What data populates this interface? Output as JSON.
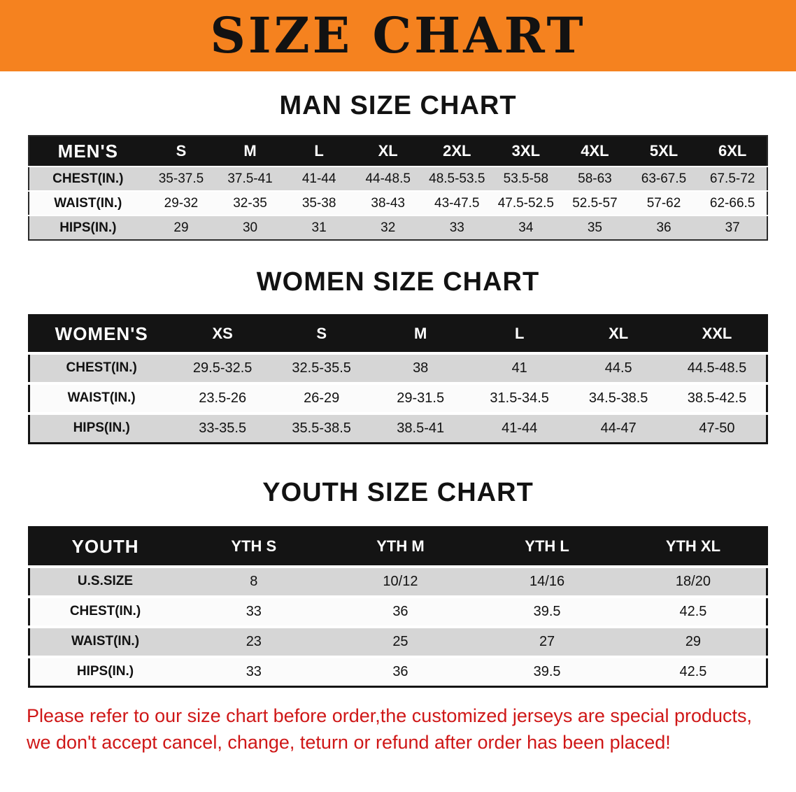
{
  "banner": {
    "title": "SIZE CHART",
    "bg_color": "#f5821f"
  },
  "tables": [
    {
      "id": "men",
      "heading": "MAN SIZE CHART",
      "header": [
        "MEN'S",
        "S",
        "M",
        "L",
        "XL",
        "2XL",
        "3XL",
        "4XL",
        "5XL",
        "6XL"
      ],
      "rows": [
        [
          "CHEST(IN.)",
          "35-37.5",
          "37.5-41",
          "41-44",
          "44-48.5",
          "48.5-53.5",
          "53.5-58",
          "58-63",
          "63-67.5",
          "67.5-72"
        ],
        [
          "WAIST(IN.)",
          "29-32",
          "32-35",
          "35-38",
          "38-43",
          "43-47.5",
          "47.5-52.5",
          "52.5-57",
          "57-62",
          "62-66.5"
        ],
        [
          "HIPS(IN.)",
          "29",
          "30",
          "31",
          "32",
          "33",
          "34",
          "35",
          "36",
          "37"
        ]
      ]
    },
    {
      "id": "women",
      "heading": "WOMEN SIZE CHART",
      "header": [
        "WOMEN'S",
        "XS",
        "S",
        "M",
        "L",
        "XL",
        "XXL"
      ],
      "rows": [
        [
          "CHEST(IN.)",
          "29.5-32.5",
          "32.5-35.5",
          "38",
          "41",
          "44.5",
          "44.5-48.5"
        ],
        [
          "WAIST(IN.)",
          "23.5-26",
          "26-29",
          "29-31.5",
          "31.5-34.5",
          "34.5-38.5",
          "38.5-42.5"
        ],
        [
          "HIPS(IN.)",
          "33-35.5",
          "35.5-38.5",
          "38.5-41",
          "41-44",
          "44-47",
          "47-50"
        ]
      ]
    },
    {
      "id": "youth",
      "heading": "YOUTH SIZE CHART",
      "header": [
        "YOUTH",
        "YTH S",
        "YTH M",
        "YTH L",
        "YTH XL"
      ],
      "rows": [
        [
          "U.S.SIZE",
          "8",
          "10/12",
          "14/16",
          "18/20"
        ],
        [
          "CHEST(IN.)",
          "33",
          "36",
          "39.5",
          "42.5"
        ],
        [
          "WAIST(IN.)",
          "23",
          "25",
          "27",
          "29"
        ],
        [
          "HIPS(IN.)",
          "33",
          "36",
          "39.5",
          "42.5"
        ]
      ]
    }
  ],
  "disclaimer": {
    "line1": "Please refer to our size chart before order,the customized jerseys are special products,",
    "line2": "we don't accept cancel, change, teturn or refund after order has been placed!",
    "color": "#cf1717"
  }
}
